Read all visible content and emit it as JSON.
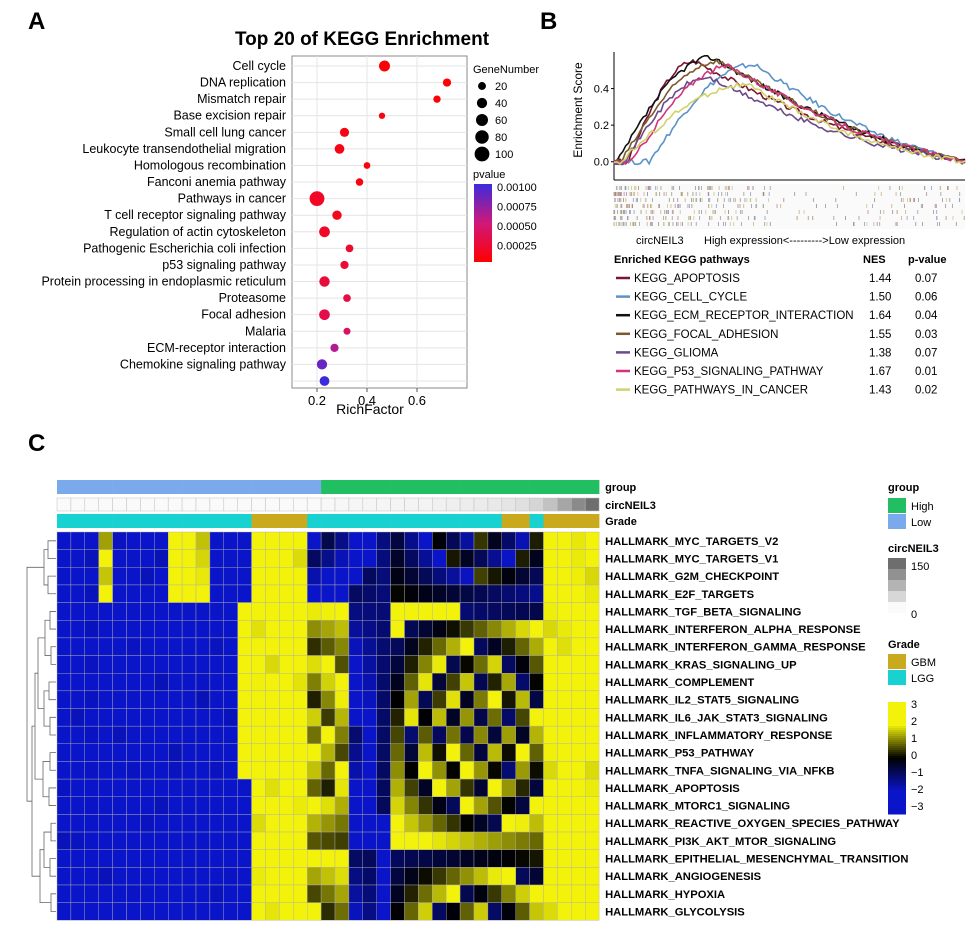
{
  "panels": {
    "a": "A",
    "b": "B",
    "c": "C"
  },
  "colors": {
    "pvalue_low": "#ff0000",
    "pvalue_high": "#3b2bdc",
    "heat_low": "#0a14c8",
    "heat_mid": "#000000",
    "heat_high": "#f2f20a",
    "group_high": "#21bf62",
    "group_low": "#7aaaec",
    "grade_gbm": "#c9a91d",
    "grade_lgg": "#18d1d1"
  },
  "chart_data": [
    {
      "type": "scatter",
      "title": "Top 20 of KEGG Enrichment",
      "xlabel": "RichFactor",
      "ylabel": "",
      "xlim": [
        0.1,
        0.8
      ],
      "xticks": [
        "0.2",
        "0.4",
        "0.6"
      ],
      "grid": true,
      "legend_position": "right",
      "size_legend": {
        "title": "GeneNumber",
        "values": [
          20,
          40,
          60,
          80,
          100
        ]
      },
      "color_legend": {
        "title": "pvalue",
        "ticks": [
          "0.00100",
          "0.00075",
          "0.00050",
          "0.00025"
        ]
      },
      "points": [
        {
          "label": "Cell cycle",
          "x": 0.47,
          "gene_number": 48,
          "pvalue": 3e-05
        },
        {
          "label": "DNA replication",
          "x": 0.72,
          "gene_number": 22,
          "pvalue": 2e-05
        },
        {
          "label": "Mismatch repair",
          "x": 0.68,
          "gene_number": 16,
          "pvalue": 3e-05
        },
        {
          "label": "Base excision repair",
          "x": 0.46,
          "gene_number": 10,
          "pvalue": 6e-05
        },
        {
          "label": "Small cell lung cancer",
          "x": 0.31,
          "gene_number": 30,
          "pvalue": 8e-05
        },
        {
          "label": "Leukocyte transendothelial migration",
          "x": 0.29,
          "gene_number": 35,
          "pvalue": 0.0001
        },
        {
          "label": "Homologous recombination",
          "x": 0.4,
          "gene_number": 12,
          "pvalue": 6e-05
        },
        {
          "label": "Fanconi anemia pathway",
          "x": 0.37,
          "gene_number": 17,
          "pvalue": 8e-05
        },
        {
          "label": "Pathways in cancer",
          "x": 0.2,
          "gene_number": 100,
          "pvalue": 0.00015
        },
        {
          "label": "T cell receptor signaling pathway",
          "x": 0.28,
          "gene_number": 32,
          "pvalue": 0.00012
        },
        {
          "label": "Regulation of actin cytoskeleton",
          "x": 0.23,
          "gene_number": 45,
          "pvalue": 0.00016
        },
        {
          "label": "Pathogenic Escherichia coli infection",
          "x": 0.33,
          "gene_number": 18,
          "pvalue": 0.0002
        },
        {
          "label": "p53 signaling pathway",
          "x": 0.31,
          "gene_number": 22,
          "pvalue": 0.00022
        },
        {
          "label": "Protein processing in endoplasmic reticulum",
          "x": 0.23,
          "gene_number": 42,
          "pvalue": 0.00025
        },
        {
          "label": "Proteasome",
          "x": 0.32,
          "gene_number": 18,
          "pvalue": 0.00028
        },
        {
          "label": "Focal adhesion",
          "x": 0.23,
          "gene_number": 45,
          "pvalue": 0.0003
        },
        {
          "label": "Malaria",
          "x": 0.32,
          "gene_number": 14,
          "pvalue": 0.0004
        },
        {
          "label": "ECM-receptor interaction",
          "x": 0.27,
          "gene_number": 22,
          "pvalue": 0.0006
        },
        {
          "label": "Chemokine signaling pathway",
          "x": 0.22,
          "gene_number": 40,
          "pvalue": 0.00085
        },
        {
          "label": "",
          "x": 0.23,
          "gene_number": 35,
          "pvalue": 0.001
        }
      ]
    },
    {
      "type": "line",
      "ylabel": "Enrichment Score",
      "yticks": [
        "0.0",
        "0.2",
        "0.4"
      ],
      "ylim": [
        -0.1,
        0.6
      ],
      "xlabel": "circNEIL3",
      "direction_label": "High expression<--------->Low expression",
      "table_headers": [
        "Enriched KEGG pathways",
        "NES",
        "p-value"
      ],
      "series": [
        {
          "name": "KEGG_APOPTOSIS",
          "nes": "1.44",
          "pvalue": "0.07",
          "color": "#7a1630",
          "peak": 0.55,
          "peak_pos": 0.23,
          "start_pos": 0.04
        },
        {
          "name": "KEGG_CELL_CYCLE",
          "nes": "1.50",
          "pvalue": "0.06",
          "color": "#5b93c7",
          "peak": 0.53,
          "peak_pos": 0.4,
          "start_pos": 0.1
        },
        {
          "name": "KEGG_ECM_RECEPTOR_INTERACTION",
          "nes": "1.64",
          "pvalue": "0.04",
          "color": "#111111",
          "peak": 0.57,
          "peak_pos": 0.28,
          "start_pos": 0.01
        },
        {
          "name": "KEGG_FOCAL_ADHESION",
          "nes": "1.55",
          "pvalue": "0.03",
          "color": "#7a5a2a",
          "peak": 0.55,
          "peak_pos": 0.3,
          "start_pos": 0.02
        },
        {
          "name": "KEGG_GLIOMA",
          "nes": "1.38",
          "pvalue": "0.07",
          "color": "#6a4a8a",
          "peak": 0.46,
          "peak_pos": 0.27,
          "start_pos": 0.03
        },
        {
          "name": "KEGG_P53_SIGNALING_PATHWAY",
          "nes": "1.67",
          "pvalue": "0.01",
          "color": "#d0357a",
          "peak": 0.52,
          "peak_pos": 0.33,
          "start_pos": 0.05
        },
        {
          "name": "KEGG_PATHWAYS_IN_CANCER",
          "nes": "1.43",
          "pvalue": "0.02",
          "color": "#d2d26a",
          "peak": 0.42,
          "peak_pos": 0.38,
          "start_pos": 0.02
        }
      ]
    },
    {
      "type": "heatmap",
      "annotation_labels": [
        "group",
        "circNEIL3",
        "Grade"
      ],
      "legends": [
        {
          "title": "group",
          "items": [
            "High",
            "Low"
          ]
        },
        {
          "title": "circNEIL3",
          "ticks": [
            "150",
            "0"
          ]
        },
        {
          "title": "Grade",
          "items": [
            "GBM",
            "LGG"
          ]
        },
        {
          "title": "",
          "ticks": [
            "3",
            "2",
            "1",
            "0",
            "−1",
            "−2",
            "−3"
          ]
        }
      ],
      "n_columns": 39,
      "group": [
        "Low",
        "Low",
        "Low",
        "Low",
        "Low",
        "Low",
        "Low",
        "Low",
        "Low",
        "Low",
        "Low",
        "Low",
        "Low",
        "Low",
        "Low",
        "Low",
        "Low",
        "Low",
        "Low",
        "High",
        "High",
        "High",
        "High",
        "High",
        "High",
        "High",
        "High",
        "High",
        "High",
        "High",
        "High",
        "High",
        "High",
        "High",
        "High",
        "High",
        "High",
        "High",
        "High"
      ],
      "circneil3": [
        0,
        0,
        0,
        0,
        0,
        0,
        0,
        0,
        0,
        0,
        0,
        0,
        0,
        0,
        0,
        0,
        0,
        0,
        0,
        2,
        3,
        4,
        5,
        5,
        6,
        7,
        8,
        10,
        12,
        14,
        16,
        18,
        22,
        28,
        40,
        60,
        90,
        120,
        150
      ],
      "grade": [
        "LGG",
        "LGG",
        "LGG",
        "LGG",
        "LGG",
        "LGG",
        "LGG",
        "LGG",
        "LGG",
        "LGG",
        "LGG",
        "LGG",
        "LGG",
        "LGG",
        "GBM",
        "GBM",
        "GBM",
        "GBM",
        "LGG",
        "LGG",
        "LGG",
        "LGG",
        "LGG",
        "LGG",
        "LGG",
        "LGG",
        "LGG",
        "LGG",
        "LGG",
        "LGG",
        "LGG",
        "LGG",
        "GBM",
        "GBM",
        "LGG",
        "GBM",
        "GBM",
        "GBM",
        "GBM"
      ],
      "rows": [
        "HALLMARK_MYC_TARGETS_V2",
        "HALLMARK_MYC_TARGETS_V1",
        "HALLMARK_G2M_CHECKPOINT",
        "HALLMARK_E2F_TARGETS",
        "HALLMARK_TGF_BETA_SIGNALING",
        "HALLMARK_INTERFERON_ALPHA_RESPONSE",
        "HALLMARK_INTERFERON_GAMMA_RESPONSE",
        "HALLMARK_KRAS_SIGNALING_UP",
        "HALLMARK_COMPLEMENT",
        "HALLMARK_IL2_STAT5_SIGNALING",
        "HALLMARK_IL6_JAK_STAT3_SIGNALING",
        "HALLMARK_INFLAMMATORY_RESPONSE",
        "HALLMARK_P53_PATHWAY",
        "HALLMARK_TNFA_SIGNALING_VIA_NFKB",
        "HALLMARK_APOPTOSIS",
        "HALLMARK_MTORC1_SIGNALING",
        "HALLMARK_REACTIVE_OXYGEN_SPECIES_PATHWAY",
        "HALLMARK_PI3K_AKT_MTOR_SIGNALING",
        "HALLMARK_EPITHELIAL_MESENCHYMAL_TRANSITION",
        "HALLMARK_ANGIOGENESIS",
        "HALLMARK_HYPOXIA",
        "HALLMARK_GLYCOLYSIS"
      ]
    }
  ]
}
